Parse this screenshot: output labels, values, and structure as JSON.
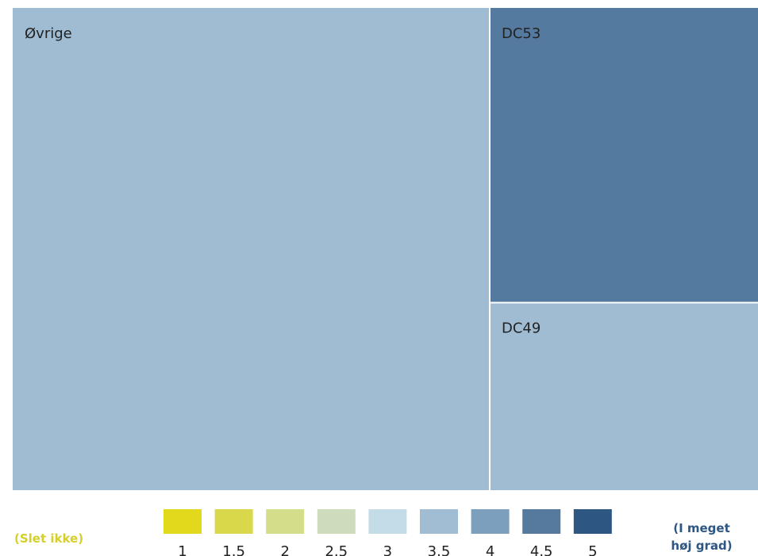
{
  "chart_data": {
    "type": "treemap",
    "items": [
      {
        "name": "Øvrige",
        "value": 64,
        "color": "#9fbcd2"
      },
      {
        "name": "DC53",
        "value": 22,
        "color": "#557a9f"
      },
      {
        "name": "DC49",
        "value": 14,
        "color": "#9fbcd2"
      }
    ],
    "legend": {
      "ticks": [
        1,
        1.5,
        2,
        2.5,
        3,
        3.5,
        4,
        4.5,
        5
      ],
      "colors": [
        "#e2d81c",
        "#d8d84a",
        "#d4de8a",
        "#cfdcbb",
        "#c4dce8",
        "#a0bdd3",
        "#7b9fbd",
        "#56799e",
        "#2e5683"
      ],
      "low_label": "(Slet ikke)",
      "high_label": "(I meget høj grad)",
      "low_color": "#d6cf2a",
      "high_color": "#2e5683"
    }
  }
}
